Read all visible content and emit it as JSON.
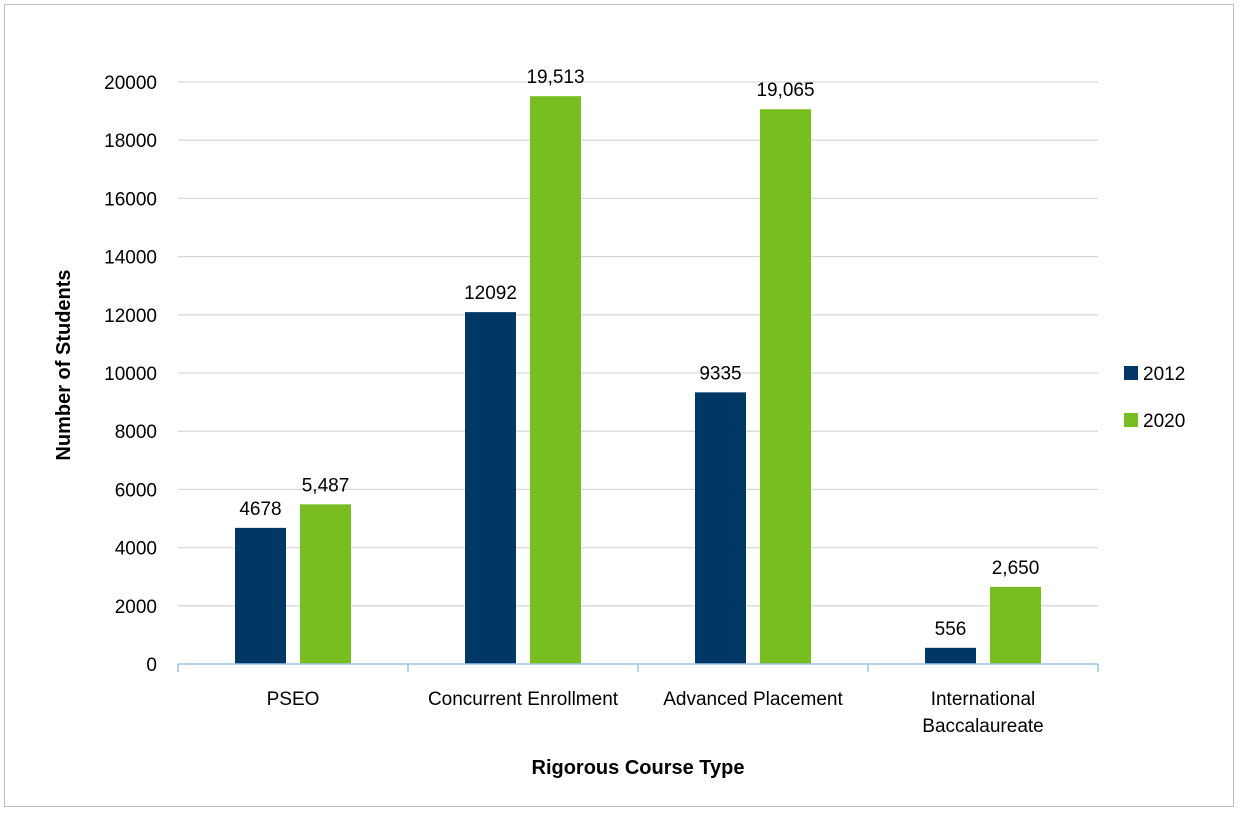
{
  "chart_data": {
    "type": "bar",
    "title": "",
    "xlabel": "Rigorous Course Type",
    "ylabel": "Number of Students",
    "categories": [
      [
        "PSEO"
      ],
      [
        "Concurrent Enrollment"
      ],
      [
        "Advanced Placement"
      ],
      [
        "International",
        "Baccalaureate"
      ]
    ],
    "series": [
      {
        "name": "2012",
        "color": "#003865",
        "values": [
          4678,
          12092,
          9335,
          556
        ],
        "labels": [
          "4678",
          "12092",
          "9335",
          "556"
        ]
      },
      {
        "name": "2020",
        "color": "#78BE20",
        "values": [
          5487,
          19513,
          19065,
          2650
        ],
        "labels": [
          "5,487",
          "19,513",
          "19,065",
          "2,650"
        ]
      }
    ],
    "ylim": [
      0,
      20000
    ],
    "yticks": [
      0,
      2000,
      4000,
      6000,
      8000,
      10000,
      12000,
      14000,
      16000,
      18000,
      20000
    ],
    "grid": true,
    "legend_position": "right"
  },
  "colors": {
    "gridline": "#d9d9d9",
    "axis": "#9dc3e6",
    "frame": "#bfbfbf"
  }
}
